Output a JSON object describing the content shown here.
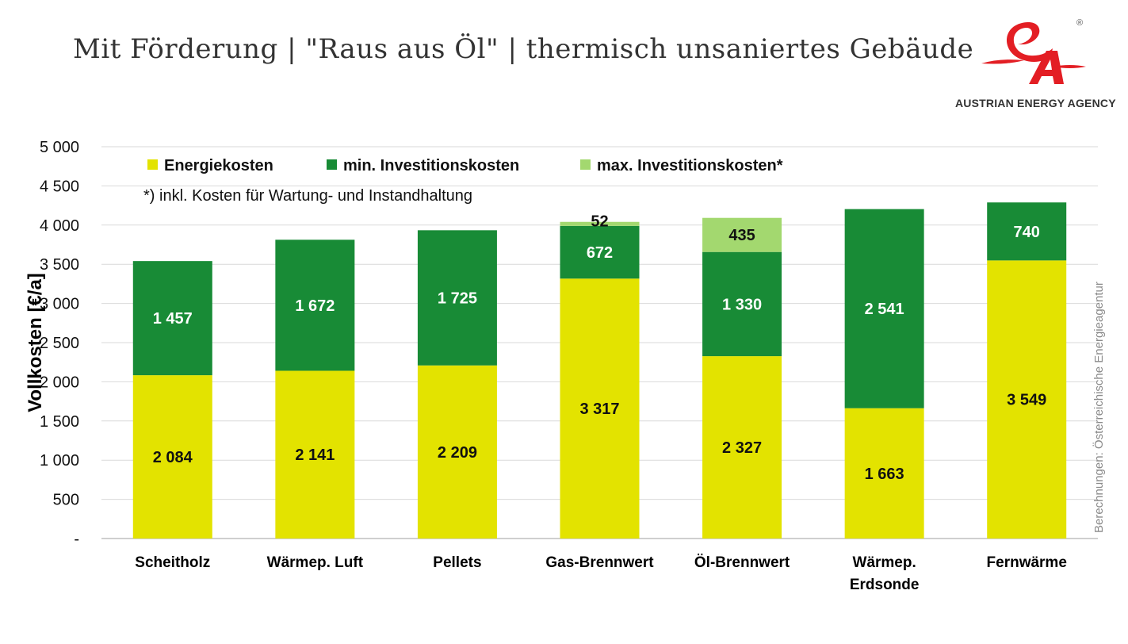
{
  "title": "Mit Förderung | \"Raus aus Öl\" | thermisch unsaniertes Gebäude",
  "logo": {
    "text": "AUSTRIAN ENERGY AGENCY",
    "mark": "®"
  },
  "credit": "Berechnungen: Österreichische Energieagentur",
  "footnote": "*) inkl. Kosten für Wartung- und Instandhaltung",
  "colors": {
    "energy": "#e3e300",
    "min_invest": "#188b36",
    "max_invest": "#a3d86f",
    "grid": "#d9d9d9",
    "logo_red": "#e31e24"
  },
  "chart_data": {
    "type": "bar",
    "stacked": true,
    "categories": [
      [
        "Scheitholz"
      ],
      [
        "Wärmep. Luft"
      ],
      [
        "Pellets"
      ],
      [
        "Gas-Brennwert"
      ],
      [
        "Öl-Brennwert"
      ],
      [
        "Wärmep.",
        "Erdsonde"
      ],
      [
        "Fernwärme"
      ]
    ],
    "series": [
      {
        "name": "Energiekosten",
        "color": "#e3e300",
        "values": [
          2084,
          2141,
          2209,
          3317,
          2327,
          1663,
          3549
        ],
        "labels": [
          "2 084",
          "2 141",
          "2 209",
          "3 317",
          "2 327",
          "1 663",
          "3 549"
        ]
      },
      {
        "name": "min. Investitionskosten",
        "color": "#188b36",
        "values": [
          1457,
          1672,
          1725,
          672,
          1330,
          2541,
          740
        ],
        "labels": [
          "1 457",
          "1 672",
          "1 725",
          "672",
          "1 330",
          "2 541",
          "740"
        ]
      },
      {
        "name": "max. Investitionskosten*",
        "color": "#a3d86f",
        "values": [
          0,
          0,
          0,
          52,
          435,
          0,
          0
        ],
        "labels": [
          "",
          "",
          "",
          "52",
          "435",
          "",
          ""
        ]
      }
    ],
    "ylabel": "Vollkosten [€/a]",
    "ylim": [
      0,
      5000
    ],
    "yticks": [
      0,
      500,
      1000,
      1500,
      2000,
      2500,
      3000,
      3500,
      4000,
      4500,
      5000
    ],
    "ytick_labels": [
      "-",
      "500",
      "1 000",
      "1 500",
      "2 000",
      "2 500",
      "3 000",
      "3 500",
      "4 000",
      "4 500",
      "5 000"
    ],
    "grid": true,
    "legend": "top-left"
  }
}
